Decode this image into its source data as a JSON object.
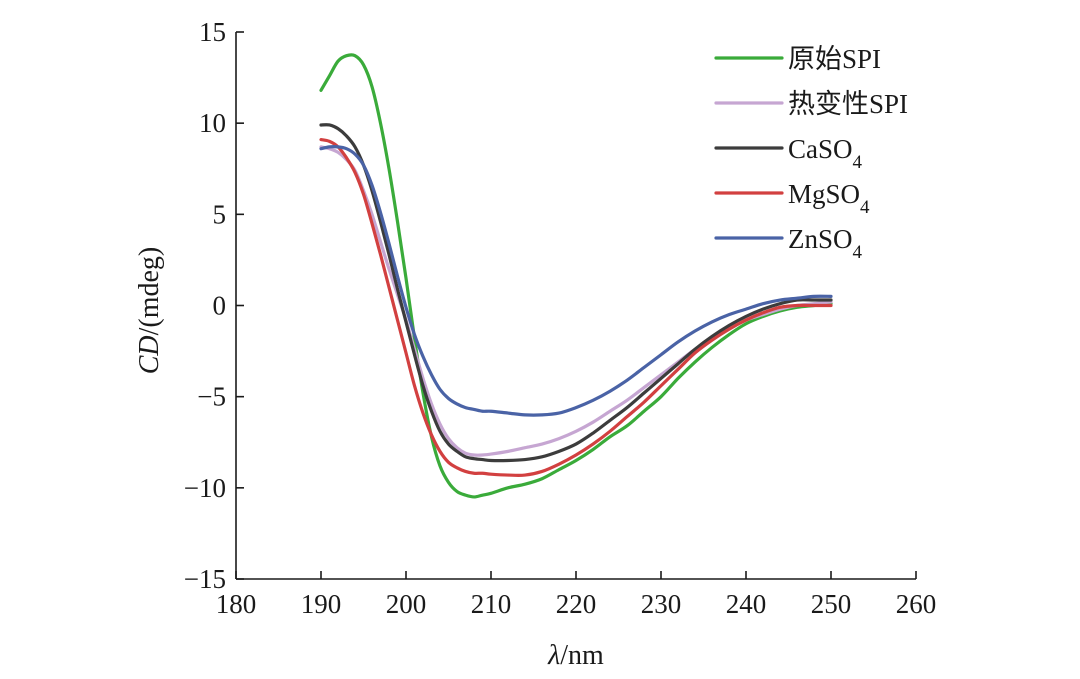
{
  "chart_data": {
    "type": "line",
    "xlabel": {
      "italic": "λ",
      "rest": "/nm"
    },
    "ylabel": {
      "italic": "CD",
      "rest": "/(mdeg)"
    },
    "xlim": [
      180,
      260
    ],
    "ylim": [
      -15,
      15
    ],
    "xticks": [
      180,
      190,
      200,
      210,
      220,
      230,
      240,
      250,
      260
    ],
    "xtick_labels": [
      "180",
      "190",
      "200",
      "210",
      "220",
      "230",
      "240",
      "250",
      "260"
    ],
    "yticks": [
      15,
      10,
      5,
      0,
      -5,
      -10,
      -15
    ],
    "ytick_labels": [
      "15",
      "10",
      "5",
      "0",
      "−5",
      "−10",
      "−15"
    ],
    "legend_position": "top-right",
    "grid": false,
    "series": [
      {
        "name": "原始SPI",
        "color": "#3aab3a",
        "x": [
          190,
          191,
          192,
          193,
          194,
          195,
          196,
          197,
          198,
          199,
          200,
          201,
          202,
          203,
          204,
          205,
          206,
          207,
          208,
          209,
          210,
          212,
          214,
          216,
          218,
          220,
          222,
          224,
          226,
          228,
          230,
          232,
          234,
          236,
          238,
          240,
          242,
          244,
          246,
          248,
          250
        ],
        "y": [
          11.8,
          12.6,
          13.4,
          13.7,
          13.7,
          13.2,
          12.0,
          10.0,
          7.5,
          4.6,
          1.5,
          -1.8,
          -4.8,
          -7.2,
          -8.8,
          -9.7,
          -10.2,
          -10.4,
          -10.5,
          -10.4,
          -10.3,
          -10.0,
          -9.8,
          -9.5,
          -9.0,
          -8.5,
          -7.9,
          -7.2,
          -6.6,
          -5.8,
          -5.0,
          -4.0,
          -3.1,
          -2.3,
          -1.6,
          -1.0,
          -0.6,
          -0.3,
          -0.1,
          0.0,
          0.1
        ]
      },
      {
        "name": "热变性SPI",
        "color": "#c6a6d2",
        "x": [
          190,
          191,
          192,
          193,
          194,
          195,
          196,
          197,
          198,
          199,
          200,
          201,
          202,
          203,
          204,
          205,
          206,
          207,
          208,
          209,
          210,
          212,
          214,
          216,
          218,
          220,
          222,
          224,
          226,
          228,
          230,
          232,
          234,
          236,
          238,
          240,
          242,
          244,
          246,
          248,
          250
        ],
        "y": [
          8.7,
          8.6,
          8.4,
          8.0,
          7.4,
          6.3,
          5.0,
          3.5,
          2.0,
          0.6,
          -0.8,
          -2.4,
          -4.0,
          -5.4,
          -6.5,
          -7.3,
          -7.8,
          -8.1,
          -8.2,
          -8.2,
          -8.15,
          -8.0,
          -7.8,
          -7.6,
          -7.3,
          -6.9,
          -6.4,
          -5.8,
          -5.2,
          -4.5,
          -3.8,
          -3.1,
          -2.4,
          -1.8,
          -1.3,
          -0.8,
          -0.5,
          -0.2,
          0.0,
          0.1,
          0.2
        ]
      },
      {
        "name": "CaSO4",
        "color": "#3c3c3c",
        "x": [
          190,
          191,
          192,
          193,
          194,
          195,
          196,
          197,
          198,
          199,
          200,
          201,
          202,
          203,
          204,
          205,
          206,
          207,
          208,
          209,
          210,
          212,
          214,
          216,
          218,
          220,
          222,
          224,
          226,
          228,
          230,
          232,
          234,
          236,
          238,
          240,
          242,
          244,
          246,
          248,
          250
        ],
        "y": [
          9.9,
          9.9,
          9.7,
          9.3,
          8.7,
          7.7,
          6.3,
          4.6,
          2.8,
          0.9,
          -0.9,
          -2.7,
          -4.4,
          -5.8,
          -6.9,
          -7.6,
          -8.0,
          -8.3,
          -8.4,
          -8.45,
          -8.5,
          -8.5,
          -8.45,
          -8.3,
          -8.0,
          -7.6,
          -7.0,
          -6.3,
          -5.6,
          -4.8,
          -4.0,
          -3.2,
          -2.4,
          -1.7,
          -1.1,
          -0.6,
          -0.2,
          0.1,
          0.3,
          0.3,
          0.3
        ]
      },
      {
        "name": "MgSO4",
        "color": "#d24040",
        "x": [
          190,
          191,
          192,
          193,
          194,
          195,
          196,
          197,
          198,
          199,
          200,
          201,
          202,
          203,
          204,
          205,
          206,
          207,
          208,
          209,
          210,
          212,
          214,
          216,
          218,
          220,
          222,
          224,
          226,
          228,
          230,
          232,
          234,
          236,
          238,
          240,
          242,
          244,
          246,
          248,
          250
        ],
        "y": [
          9.1,
          9.0,
          8.7,
          8.1,
          7.3,
          6.1,
          4.5,
          2.8,
          1.0,
          -0.8,
          -2.6,
          -4.4,
          -5.9,
          -7.1,
          -8.0,
          -8.6,
          -8.9,
          -9.1,
          -9.2,
          -9.2,
          -9.25,
          -9.3,
          -9.3,
          -9.1,
          -8.7,
          -8.2,
          -7.6,
          -6.9,
          -6.1,
          -5.3,
          -4.4,
          -3.5,
          -2.6,
          -1.9,
          -1.3,
          -0.8,
          -0.4,
          -0.1,
          0.0,
          0.0,
          0.0
        ]
      },
      {
        "name": "ZnSO4",
        "color": "#4a63a6",
        "x": [
          190,
          191,
          192,
          193,
          194,
          195,
          196,
          197,
          198,
          199,
          200,
          201,
          202,
          203,
          204,
          205,
          206,
          207,
          208,
          209,
          210,
          212,
          214,
          216,
          218,
          220,
          222,
          224,
          226,
          228,
          230,
          232,
          234,
          236,
          238,
          240,
          242,
          244,
          246,
          248,
          250
        ],
        "y": [
          8.6,
          8.7,
          8.7,
          8.6,
          8.3,
          7.7,
          6.6,
          5.1,
          3.4,
          1.6,
          -0.1,
          -1.6,
          -2.8,
          -3.8,
          -4.6,
          -5.1,
          -5.4,
          -5.6,
          -5.7,
          -5.8,
          -5.8,
          -5.9,
          -6.0,
          -6.0,
          -5.9,
          -5.6,
          -5.2,
          -4.7,
          -4.1,
          -3.4,
          -2.7,
          -2.0,
          -1.4,
          -0.9,
          -0.5,
          -0.2,
          0.1,
          0.3,
          0.4,
          0.5,
          0.5
        ]
      }
    ]
  },
  "legend": {
    "items": [
      {
        "main": "原始SPI",
        "sub": ""
      },
      {
        "main": "热变性SPI",
        "sub": ""
      },
      {
        "main": "CaSO",
        "sub": "4"
      },
      {
        "main": "MgSO",
        "sub": "4"
      },
      {
        "main": "ZnSO",
        "sub": "4"
      }
    ]
  }
}
